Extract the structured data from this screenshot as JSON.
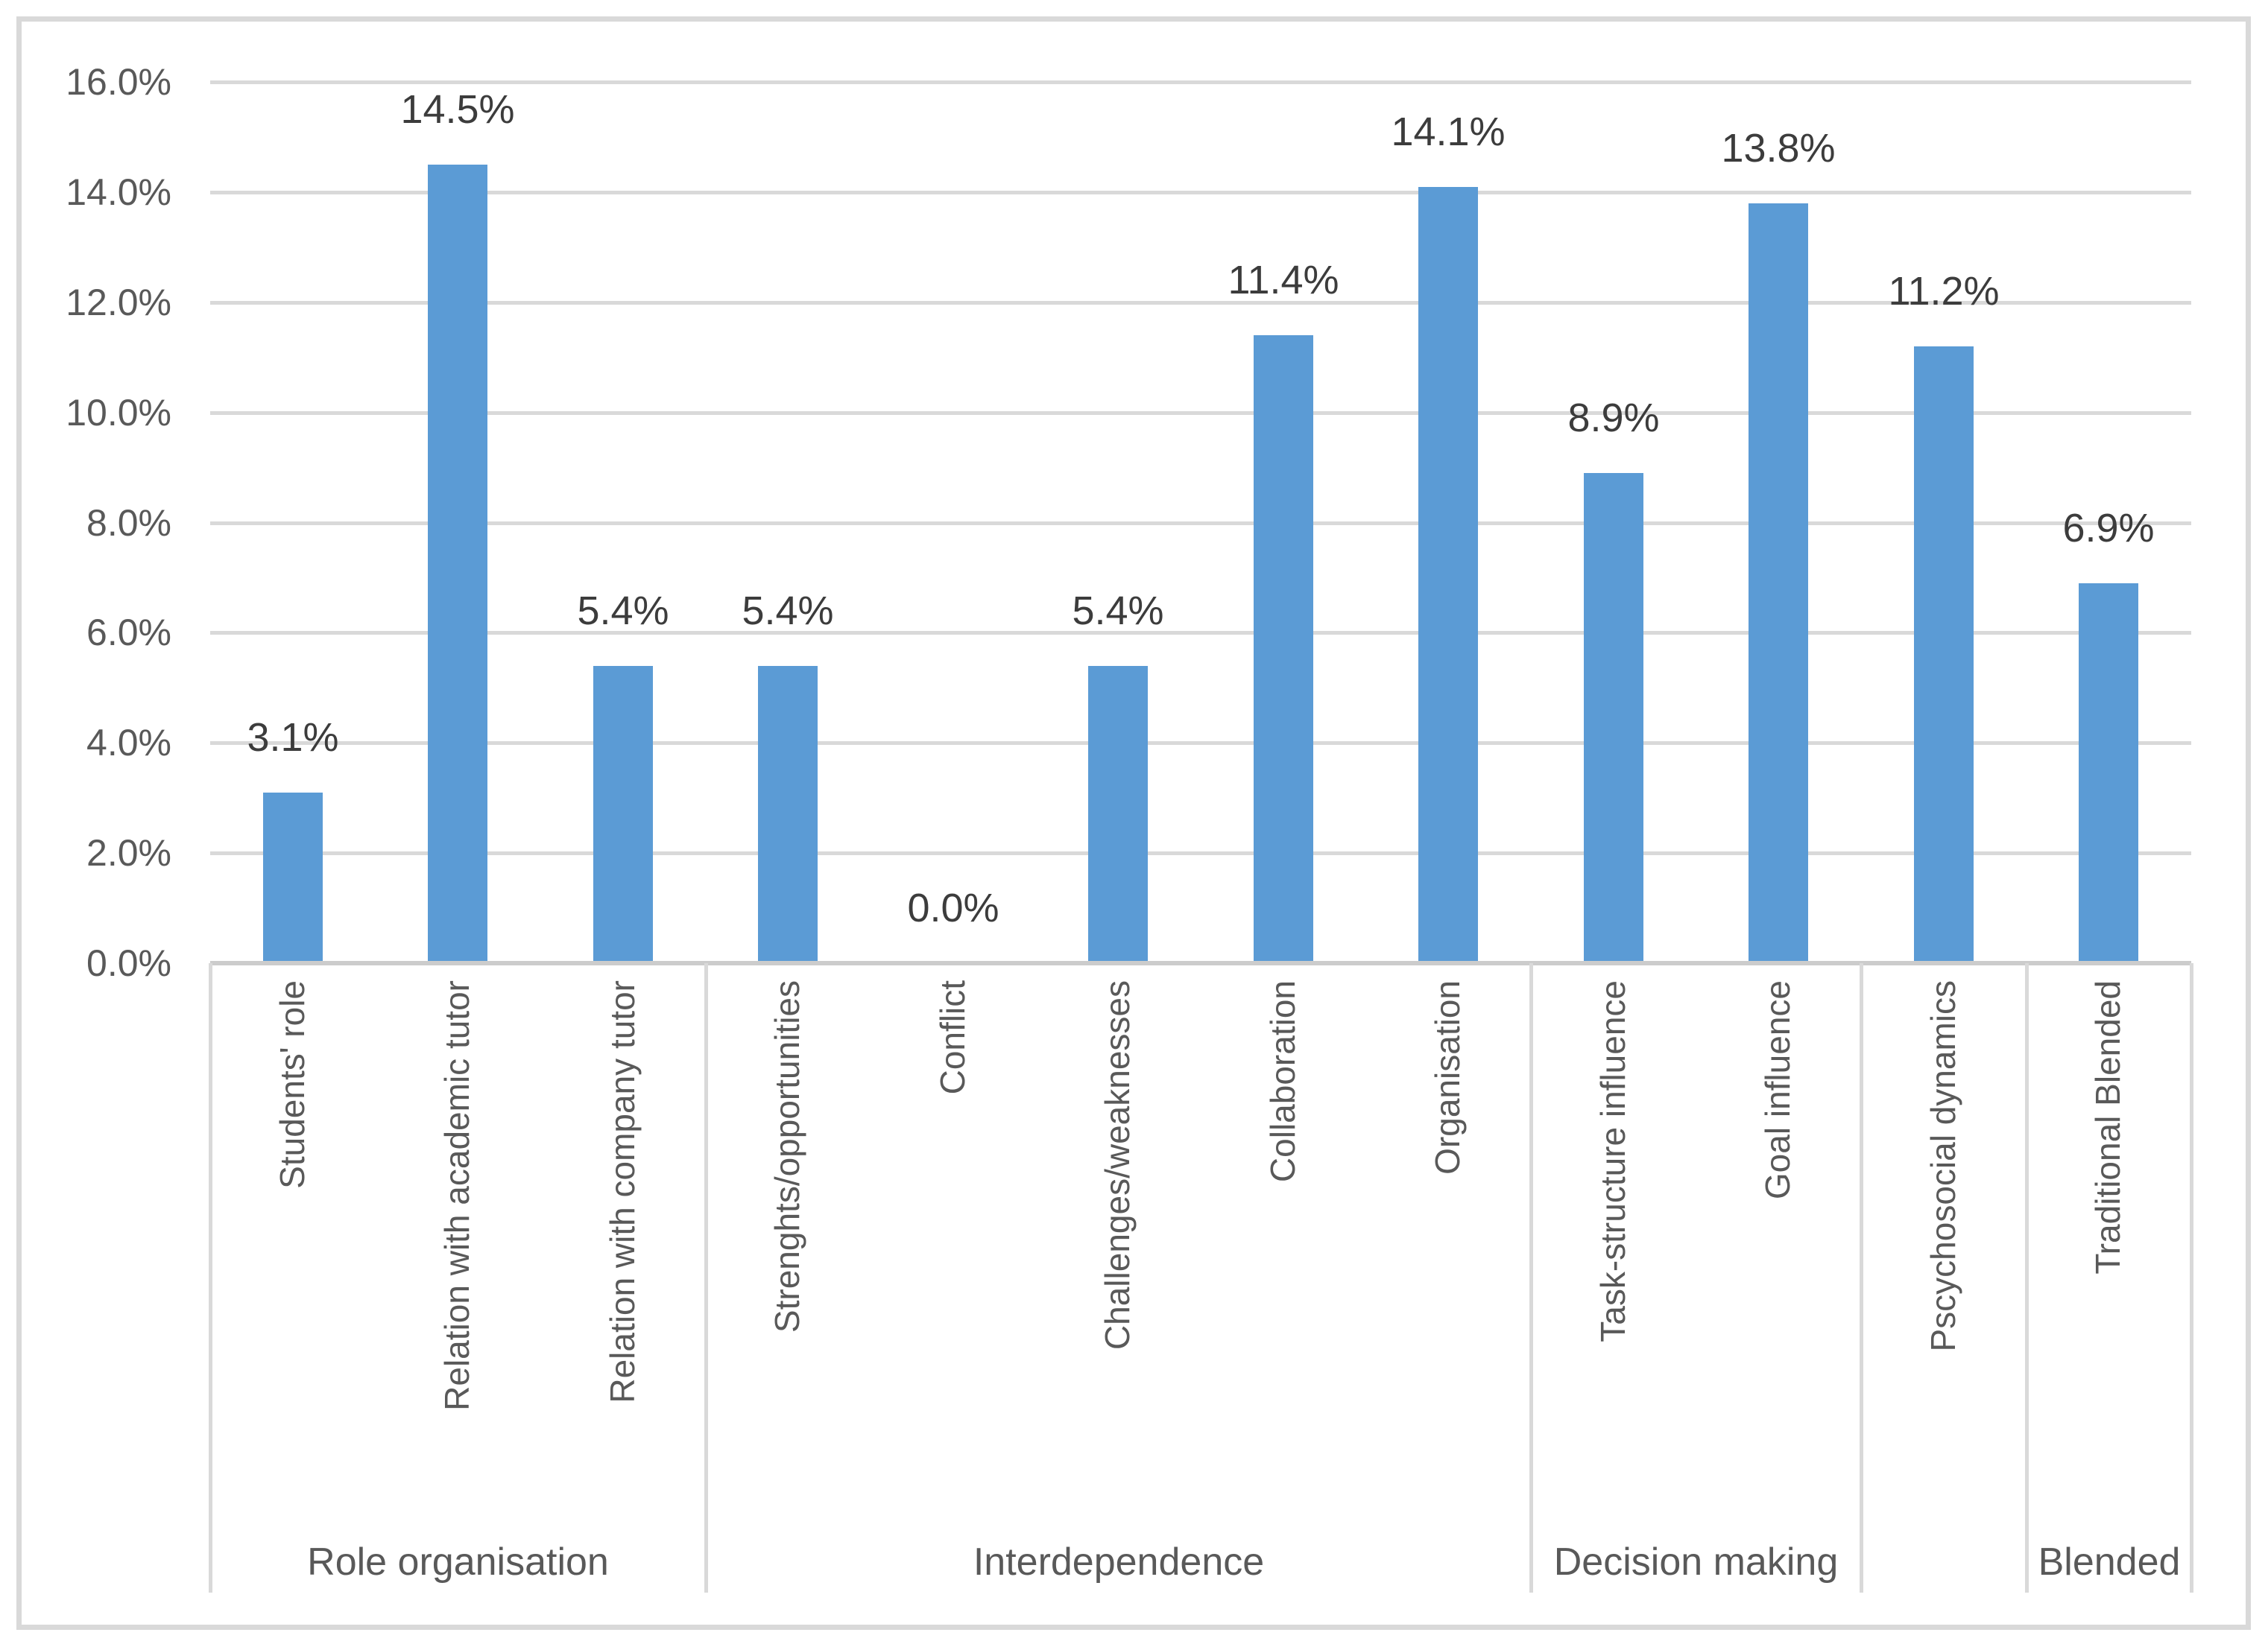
{
  "chart_data": {
    "type": "bar",
    "title": "",
    "xlabel": "",
    "ylabel": "",
    "ylim": [
      0,
      16
    ],
    "grid": "horizontal",
    "legend": "none",
    "unit": "%",
    "y_ticks": [
      "0.0%",
      "2.0%",
      "4.0%",
      "6.0%",
      "8.0%",
      "10.0%",
      "12.0%",
      "14.0%",
      "16.0%"
    ],
    "categories": [
      "Students' role",
      "Relation with academic tutor",
      "Relation with company tutor",
      "Strenghts/opportunities",
      "Conflict",
      "Challenges/weaknesses",
      "Collaboration",
      "Organisation",
      "Task-structure influence",
      "Goal influence",
      "Pscychosocial dynamics",
      "Traditional Blended"
    ],
    "values": [
      3.1,
      14.5,
      5.4,
      5.4,
      0.0,
      5.4,
      11.4,
      14.1,
      8.9,
      13.8,
      11.2,
      6.9
    ],
    "data_labels": [
      "3.1%",
      "14.5%",
      "5.4%",
      "5.4%",
      "0.0%",
      "5.4%",
      "11.4%",
      "14.1%",
      "8.9%",
      "13.8%",
      "11.2%",
      "6.9%"
    ],
    "category_groups": [
      {
        "label": "Role organisation",
        "span": 3
      },
      {
        "label": "Interdependence",
        "span": 5
      },
      {
        "label": "Decision making",
        "span": 2
      },
      {
        "label": "",
        "span": 1
      },
      {
        "label": "Blended",
        "span": 1
      }
    ],
    "colors": {
      "bar": "#5b9bd5",
      "gridline": "#d9d9d9",
      "axis_line": "#cccccc",
      "frame_border": "#d9d9d9",
      "tick_text": "#595959",
      "category_text": "#595959",
      "group_text": "#595959",
      "data_label_text": "#3c3c3c",
      "background": "#ffffff"
    }
  }
}
